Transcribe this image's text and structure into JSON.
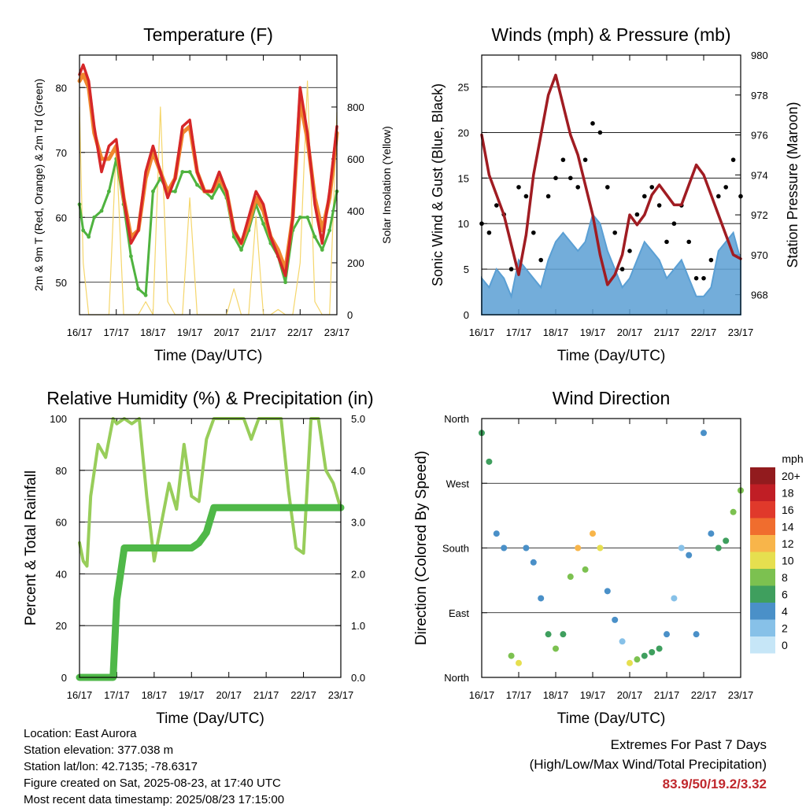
{
  "colors": {
    "t2m": "#d62728",
    "t9m": "#f0872e",
    "td": "#4fb33f",
    "solar": "#f5d66b",
    "wind": "#5a9fd4",
    "gust": "#000000",
    "pressure": "#a01c22",
    "rh": "#98cd5a",
    "precip": "#4fb848",
    "extremes": "#c0282d"
  },
  "xticks": [
    "16/17",
    "17/17",
    "18/17",
    "19/17",
    "20/17",
    "21/17",
    "22/17",
    "23/17"
  ],
  "chart_data": [
    {
      "type": "line",
      "title": "Temperature (F)",
      "xlabel": "Time (Day/UTC)",
      "ylabel": "2m & 9m T (Red, Orange) & 2m Td (Green)",
      "y2label": "Solar Insolation (Yellow)",
      "ylim": [
        45,
        85
      ],
      "yticks": [
        50,
        60,
        70,
        80
      ],
      "y2lim": [
        0,
        1000
      ],
      "y2ticks": [
        0,
        200,
        400,
        600,
        800
      ],
      "x": [
        0,
        0.1,
        0.25,
        0.4,
        0.6,
        0.8,
        1.0,
        1.2,
        1.4,
        1.6,
        1.8,
        2.0,
        2.2,
        2.4,
        2.6,
        2.8,
        3.0,
        3.2,
        3.4,
        3.6,
        3.8,
        4.0,
        4.2,
        4.4,
        4.6,
        4.8,
        5.0,
        5.2,
        5.4,
        5.6,
        5.8,
        6.0,
        6.2,
        6.4,
        6.6,
        6.8,
        7.0
      ],
      "series": [
        {
          "key": "t2m",
          "values": [
            82,
            83.5,
            81,
            74,
            67,
            71,
            72,
            63,
            56,
            58,
            67,
            71,
            67,
            63,
            66,
            74,
            75,
            67,
            64,
            64,
            67,
            64,
            58,
            56,
            60,
            64,
            62,
            57,
            54,
            51,
            60,
            80,
            73,
            62,
            56,
            64,
            74
          ]
        },
        {
          "key": "t9m",
          "values": [
            81,
            82,
            80,
            73,
            69,
            69,
            71,
            63,
            57,
            58,
            66,
            70,
            67,
            64,
            66,
            73,
            74,
            67,
            64,
            64,
            66,
            64,
            58,
            56,
            59,
            63,
            61,
            57,
            55,
            52,
            60,
            78,
            72,
            63,
            58,
            63,
            73
          ]
        },
        {
          "key": "td",
          "values": [
            62,
            58,
            57,
            60,
            61,
            64,
            69,
            62,
            54,
            49,
            48,
            64,
            66,
            64,
            64,
            67,
            67,
            65,
            64,
            63,
            65,
            63,
            57,
            55,
            58,
            62,
            59,
            56,
            54,
            50,
            58,
            60,
            60,
            57,
            55,
            58,
            64
          ]
        },
        {
          "key": "solar",
          "values": [
            800,
            200,
            0,
            0,
            0,
            0,
            650,
            0,
            0,
            0,
            50,
            0,
            800,
            50,
            0,
            0,
            450,
            0,
            0,
            0,
            0,
            0,
            100,
            0,
            0,
            380,
            0,
            0,
            20,
            0,
            0,
            200,
            900,
            50,
            0,
            0,
            780
          ]
        }
      ]
    },
    {
      "type": "line",
      "title": "Winds (mph) & Pressure (mb)",
      "xlabel": "Time (Day/UTC)",
      "ylabel": "Sonic Wind & Gust (Blue, Black)",
      "y2label": "Station Pressure (Maroon)",
      "ylim": [
        0,
        28.5
      ],
      "yticks": [
        0,
        5,
        10,
        15,
        20,
        25
      ],
      "y2lim": [
        967,
        980
      ],
      "y2ticks": [
        968,
        970,
        972,
        974,
        976,
        978,
        980
      ],
      "x": [
        0,
        0.2,
        0.4,
        0.6,
        0.8,
        1.0,
        1.2,
        1.4,
        1.6,
        1.8,
        2.0,
        2.2,
        2.4,
        2.6,
        2.8,
        3.0,
        3.2,
        3.4,
        3.6,
        3.8,
        4.0,
        4.2,
        4.4,
        4.6,
        4.8,
        5.0,
        5.2,
        5.4,
        5.6,
        5.8,
        6.0,
        6.2,
        6.4,
        6.6,
        6.8,
        7.0
      ],
      "series": [
        {
          "key": "wind",
          "values": [
            4,
            3,
            5,
            4,
            2,
            6,
            5,
            4,
            3,
            6,
            8,
            9,
            8,
            7,
            8,
            11,
            10,
            7,
            5,
            3,
            4,
            6,
            8,
            7,
            6,
            4,
            5,
            6,
            4,
            2,
            2,
            3,
            7,
            8,
            9,
            6
          ]
        },
        {
          "key": "gust",
          "values": [
            10,
            9,
            12,
            11,
            5,
            14,
            13,
            9,
            6,
            13,
            15,
            17,
            15,
            14,
            17,
            21,
            20,
            14,
            9,
            5,
            7,
            11,
            13,
            14,
            12,
            8,
            10,
            12,
            8,
            4,
            4,
            6,
            13,
            14,
            17,
            13
          ]
        },
        {
          "key": "pressure",
          "values": [
            976,
            974,
            973,
            972,
            970.5,
            969,
            971,
            974,
            976,
            978,
            979,
            977.5,
            976,
            975,
            973.5,
            972,
            970,
            968.5,
            969,
            970,
            972,
            971.5,
            972,
            973,
            973.5,
            973,
            972.5,
            972.5,
            973.5,
            974.5,
            974,
            973,
            972,
            971,
            970,
            969.8
          ]
        }
      ]
    },
    {
      "type": "line",
      "title": "Relative Humidity (%) & Precipitation (in)",
      "xlabel": "Time (Day/UTC)",
      "ylabel": "Percent & Total Rainfall",
      "ylim": [
        0,
        100
      ],
      "yticks": [
        0,
        20,
        40,
        60,
        80,
        100
      ],
      "y2lim": [
        0,
        5
      ],
      "y2ticks": [
        "0.0",
        "1.0",
        "2.0",
        "3.0",
        "4.0",
        "5.0"
      ],
      "x": [
        0,
        0.1,
        0.2,
        0.3,
        0.5,
        0.7,
        0.9,
        1.0,
        1.2,
        1.4,
        1.6,
        1.8,
        2.0,
        2.2,
        2.4,
        2.6,
        2.8,
        3.0,
        3.2,
        3.4,
        3.6,
        3.8,
        4.0,
        4.2,
        4.4,
        4.6,
        4.8,
        5.0,
        5.2,
        5.4,
        5.6,
        5.8,
        6.0,
        6.2,
        6.4,
        6.6,
        6.8,
        7.0
      ],
      "series": [
        {
          "key": "rh",
          "values": [
            52,
            45,
            43,
            70,
            90,
            85,
            100,
            98,
            100,
            98,
            100,
            70,
            45,
            60,
            75,
            65,
            90,
            70,
            68,
            92,
            100,
            100,
            100,
            100,
            100,
            92,
            100,
            100,
            100,
            100,
            72,
            50,
            48,
            100,
            100,
            80,
            75,
            65
          ]
        },
        {
          "key": "precip",
          "values": [
            0,
            0,
            0,
            0,
            0,
            0,
            0,
            1.5,
            2.5,
            2.5,
            2.5,
            2.5,
            2.5,
            2.5,
            2.5,
            2.5,
            2.5,
            2.5,
            2.6,
            2.8,
            3.28,
            3.28,
            3.28,
            3.28,
            3.28,
            3.28,
            3.28,
            3.28,
            3.28,
            3.28,
            3.28,
            3.28,
            3.28,
            3.28,
            3.28,
            3.28,
            3.28,
            3.28
          ]
        }
      ]
    },
    {
      "type": "scatter",
      "title": "Wind Direction",
      "xlabel": "Time (Day/UTC)",
      "ylabel": "Direction (Colored By Speed)",
      "ylim": [
        0,
        360
      ],
      "yticklabels": [
        "North",
        "East",
        "South",
        "West",
        "North"
      ],
      "legend_title": "mph",
      "legend_labels": [
        "0",
        "2",
        "4",
        "6",
        "8",
        "10",
        "12",
        "14",
        "16",
        "18",
        "20+"
      ],
      "legend_colors": [
        "#c6e6f7",
        "#87c1e8",
        "#4a90c8",
        "#3f9f5e",
        "#7cc150",
        "#e6df4f",
        "#f8b54a",
        "#f06d2e",
        "#e0392b",
        "#c01e25",
        "#921b1e"
      ],
      "x": [
        0,
        0.2,
        0.4,
        0.6,
        0.8,
        1.0,
        1.2,
        1.4,
        1.6,
        1.8,
        2.0,
        2.2,
        2.4,
        2.6,
        2.8,
        3.0,
        3.2,
        3.4,
        3.6,
        3.8,
        4.0,
        4.2,
        4.4,
        4.6,
        4.8,
        5.0,
        5.2,
        5.4,
        5.6,
        5.8,
        6.0,
        6.2,
        6.4,
        6.6,
        6.8,
        7.0
      ],
      "series": [
        {
          "key": "direction",
          "values": [
            340,
            300,
            200,
            180,
            30,
            20,
            180,
            160,
            110,
            60,
            40,
            60,
            140,
            180,
            150,
            200,
            180,
            120,
            80,
            50,
            20,
            25,
            30,
            35,
            40,
            60,
            110,
            180,
            170,
            60,
            340,
            200,
            180,
            190,
            230,
            260
          ],
          "speeds": [
            5,
            6,
            4,
            3,
            8,
            10,
            4,
            3,
            3,
            6,
            8,
            5,
            7,
            12,
            7,
            12,
            10,
            3,
            3,
            2,
            9,
            8,
            6,
            6,
            5,
            4,
            2,
            2,
            3,
            3,
            4,
            3,
            5,
            6,
            8,
            8
          ]
        }
      ]
    }
  ],
  "info": {
    "location": "Location: East Aurora",
    "elevation": "Station elevation: 377.038 m",
    "latlon": "Station lat/lon: 42.7135; -78.6317",
    "created": "Figure created on Sat, 2025-08-23, at 17:40 UTC",
    "recent": "Most recent data timestamp: 2025/08/23 17:15:00"
  },
  "extremes": {
    "line1": "Extremes For Past 7 Days",
    "line2": "(High/Low/Max Wind/Total Precipitation)",
    "values": "83.9/50/19.2/3.32"
  }
}
